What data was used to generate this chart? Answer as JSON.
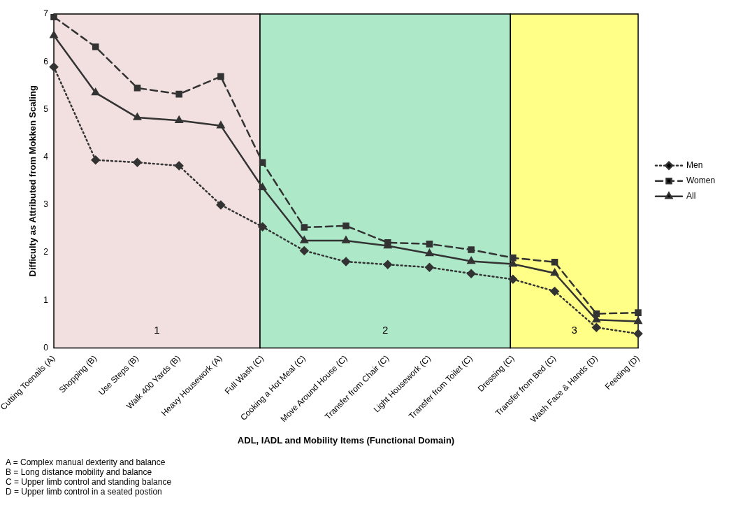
{
  "chart_data": {
    "type": "line",
    "ylabel": "Difficulty as Attributed from Mokken Scaling",
    "xlabel": "ADL, IADL and Mobility Items (Functional Domain)",
    "categories": [
      "Cutting Toenails (A)",
      "Shopping (B)",
      "Use Steps (B)",
      "Walk 400 Yards (B)",
      "Heavy Housework (A)",
      "Full Wash (C)",
      "Cooking a Hot Meal (C)",
      "Move Around House (C)",
      "Transfer from Chair (C)",
      "Light Housework (C)",
      "Transfer from Toilet (C)",
      "Dressing (C)",
      "Transfer from Bed (C)",
      "Wash Face & Hands (D)",
      "Feeding (D)"
    ],
    "series": [
      {
        "name": "Men",
        "color": "#333333",
        "line_style": "dotted",
        "marker": "diamond",
        "values": [
          5.89,
          3.94,
          3.89,
          3.82,
          3.0,
          2.54,
          2.04,
          1.81,
          1.75,
          1.69,
          1.56,
          1.44,
          1.19,
          0.43,
          0.3
        ]
      },
      {
        "name": "Women",
        "color": "#333333",
        "line_style": "dashed",
        "marker": "square",
        "values": [
          6.94,
          6.31,
          5.45,
          5.32,
          5.69,
          3.89,
          2.53,
          2.56,
          2.21,
          2.18,
          2.06,
          1.89,
          1.8,
          0.72,
          0.74
        ]
      },
      {
        "name": "All",
        "color": "#333333",
        "line_style": "solid",
        "marker": "triangle",
        "values": [
          6.55,
          5.35,
          4.83,
          4.77,
          4.66,
          3.36,
          2.25,
          2.25,
          2.14,
          1.98,
          1.82,
          1.76,
          1.57,
          0.59,
          0.56
        ]
      }
    ],
    "bands": [
      {
        "axis": "x",
        "from": "Cutting Toenails (A)",
        "to": "Full Wash (C)",
        "label": "1",
        "color": "#f2e0e0"
      },
      {
        "axis": "x",
        "from": "Full Wash (C)",
        "to": "Dressing (C)",
        "label": "2",
        "color": "#ade8c8"
      },
      {
        "axis": "x",
        "from": "Dressing (C)",
        "to": "Feeding (D)",
        "label": "3",
        "color": "#ffff88"
      }
    ],
    "ylim": [
      0,
      7
    ],
    "yticks": [
      0,
      1,
      2,
      3,
      4,
      5,
      6,
      7
    ],
    "grid": false,
    "legend": "right",
    "annotations": [
      "A = Complex manual dexterity and balance",
      "B = Long distance mobility and balance",
      "C = Upper limb control and standing balance",
      "D = Upper limb control in a seated postion"
    ]
  }
}
